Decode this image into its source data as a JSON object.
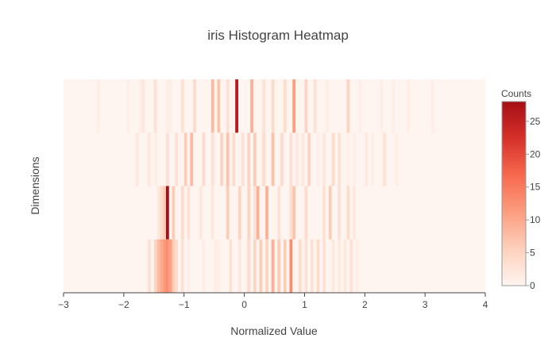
{
  "chart_data": {
    "type": "heatmap",
    "title": "iris Histogram Heatmap",
    "xlabel": "Normalized Value",
    "ylabel": "Dimensions",
    "xlim": [
      -3,
      4
    ],
    "x_ticks": [
      -3,
      -2,
      -1,
      0,
      1,
      2,
      3,
      4
    ],
    "x_tick_labels": [
      "−3",
      "−2",
      "−1",
      "0",
      "1",
      "2",
      "3",
      "4"
    ],
    "rows": 4,
    "colorscale": {
      "title": "Counts",
      "min": 0,
      "max": 28,
      "low_color": "#fff5f0",
      "high_color": "#a50f15",
      "ticks": [
        0,
        5,
        10,
        15,
        20,
        25
      ],
      "tick_labels": [
        "0",
        "5",
        "10",
        "15",
        "20",
        "25"
      ]
    },
    "series": [
      {
        "bins": [
          [
            -2.45,
            1
          ],
          [
            -1.95,
            1
          ],
          [
            -1.75,
            1
          ],
          [
            -1.7,
            2
          ],
          [
            -1.5,
            3
          ],
          [
            -1.3,
            1
          ],
          [
            -1.25,
            1
          ],
          [
            -1.05,
            3
          ],
          [
            -0.85,
            4
          ],
          [
            -0.55,
            8
          ],
          [
            -0.45,
            7
          ],
          [
            -0.3,
            3
          ],
          [
            -0.15,
            26
          ],
          [
            0.1,
            9
          ],
          [
            0.3,
            3
          ],
          [
            0.45,
            4
          ],
          [
            0.65,
            4
          ],
          [
            0.8,
            11
          ],
          [
            1.0,
            5
          ],
          [
            1.15,
            3
          ],
          [
            1.35,
            1
          ],
          [
            1.7,
            5
          ],
          [
            1.9,
            1
          ],
          [
            2.25,
            1
          ],
          [
            2.45,
            1
          ],
          [
            2.7,
            1
          ],
          [
            3.1,
            1
          ]
        ]
      },
      {
        "bins": [
          [
            -1.8,
            2
          ],
          [
            -1.6,
            2
          ],
          [
            -1.5,
            1
          ],
          [
            -1.3,
            3
          ],
          [
            -1.15,
            3
          ],
          [
            -1.0,
            6
          ],
          [
            -0.9,
            8
          ],
          [
            -0.7,
            4
          ],
          [
            -0.55,
            3
          ],
          [
            -0.4,
            5
          ],
          [
            -0.3,
            7
          ],
          [
            -0.2,
            4
          ],
          [
            -0.05,
            3
          ],
          [
            0.05,
            5
          ],
          [
            0.15,
            6
          ],
          [
            0.3,
            4
          ],
          [
            0.45,
            7
          ],
          [
            0.6,
            4
          ],
          [
            0.75,
            3
          ],
          [
            0.85,
            2
          ],
          [
            0.95,
            2
          ],
          [
            1.05,
            5
          ],
          [
            1.2,
            1
          ],
          [
            1.3,
            2
          ],
          [
            1.45,
            4
          ],
          [
            1.55,
            3
          ],
          [
            1.7,
            1
          ],
          [
            1.8,
            1
          ],
          [
            2.0,
            2
          ],
          [
            2.1,
            1
          ],
          [
            2.3,
            3
          ],
          [
            2.5,
            1
          ]
        ]
      },
      {
        "bins": [
          [
            -1.45,
            2
          ],
          [
            -1.4,
            4
          ],
          [
            -1.35,
            6
          ],
          [
            -1.3,
            28
          ],
          [
            -1.2,
            6
          ],
          [
            -1.05,
            4
          ],
          [
            -0.95,
            3
          ],
          [
            -0.75,
            2
          ],
          [
            -0.55,
            2
          ],
          [
            -0.3,
            6
          ],
          [
            -0.1,
            5
          ],
          [
            0.05,
            5
          ],
          [
            0.15,
            3
          ],
          [
            0.2,
            9
          ],
          [
            0.35,
            9
          ],
          [
            0.55,
            3
          ],
          [
            0.75,
            3
          ],
          [
            0.8,
            7
          ],
          [
            1.0,
            4
          ],
          [
            1.3,
            3
          ],
          [
            1.4,
            6
          ],
          [
            1.55,
            3
          ],
          [
            1.7,
            4
          ],
          [
            1.8,
            2
          ]
        ]
      },
      {
        "bins": [
          [
            -1.6,
            3
          ],
          [
            -1.5,
            5
          ],
          [
            -1.45,
            8
          ],
          [
            -1.4,
            10
          ],
          [
            -1.35,
            12
          ],
          [
            -1.3,
            13
          ],
          [
            -1.25,
            11
          ],
          [
            -1.2,
            6
          ],
          [
            -1.15,
            4
          ],
          [
            -1.05,
            3
          ],
          [
            -0.95,
            1
          ],
          [
            -0.7,
            1
          ],
          [
            -0.5,
            1
          ],
          [
            -0.45,
            1
          ],
          [
            -0.25,
            3
          ],
          [
            -0.1,
            2
          ],
          [
            0.05,
            4
          ],
          [
            0.15,
            5
          ],
          [
            0.25,
            6
          ],
          [
            0.35,
            5
          ],
          [
            0.45,
            9
          ],
          [
            0.55,
            6
          ],
          [
            0.65,
            6
          ],
          [
            0.75,
            13
          ],
          [
            0.9,
            4
          ],
          [
            1.0,
            3
          ],
          [
            1.1,
            3
          ],
          [
            1.2,
            4
          ],
          [
            1.3,
            3
          ],
          [
            1.45,
            2
          ],
          [
            1.55,
            2
          ],
          [
            1.65,
            2
          ],
          [
            1.75,
            3
          ],
          [
            1.85,
            1
          ]
        ]
      }
    ]
  }
}
